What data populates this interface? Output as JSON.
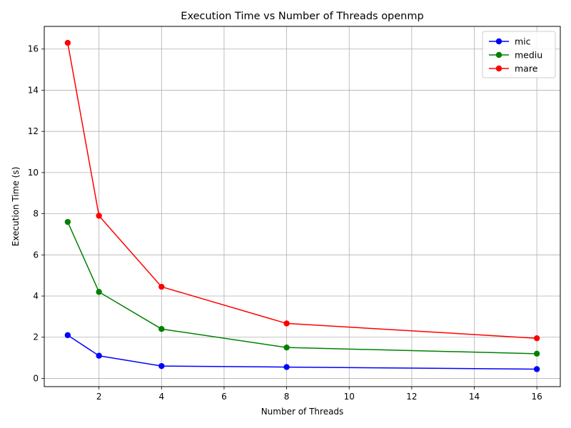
{
  "chart_data": {
    "type": "line",
    "title": "Execution Time vs Number of Threads openmp",
    "xlabel": "Number of Threads",
    "ylabel": "Execution Time (s)",
    "x": [
      1,
      2,
      4,
      8,
      16
    ],
    "xlim": [
      0.25,
      16.75
    ],
    "ylim": [
      -0.4,
      17.1
    ],
    "xticks": [
      2,
      4,
      6,
      8,
      10,
      12,
      14,
      16
    ],
    "yticks": [
      0,
      2,
      4,
      6,
      8,
      10,
      12,
      14,
      16
    ],
    "grid": true,
    "legend_position": "top-right",
    "series": [
      {
        "name": "mic",
        "color": "#0000ff",
        "values": [
          2.1,
          1.1,
          0.6,
          0.55,
          0.45
        ]
      },
      {
        "name": "mediu",
        "color": "#008000",
        "values": [
          7.6,
          4.2,
          2.4,
          1.5,
          1.2
        ]
      },
      {
        "name": "mare",
        "color": "#ff0000",
        "values": [
          16.3,
          7.9,
          4.45,
          2.67,
          1.95
        ]
      }
    ]
  }
}
